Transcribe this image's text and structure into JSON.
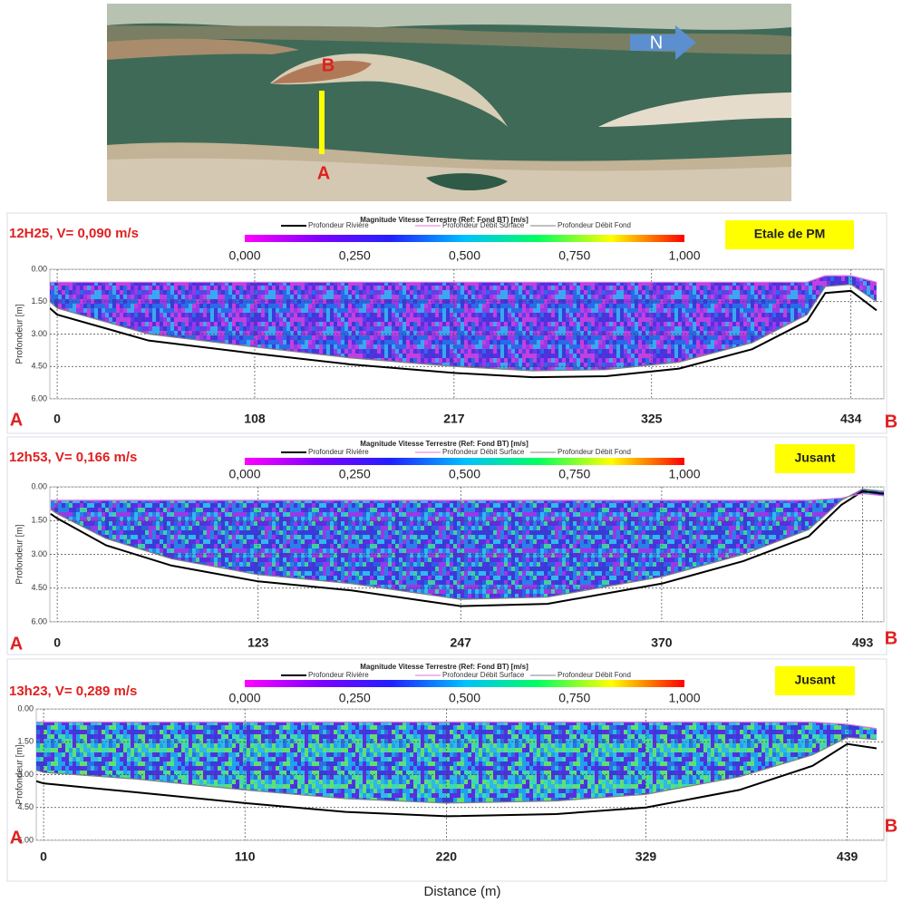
{
  "map": {
    "label_a": "A",
    "label_b": "B",
    "north": "N"
  },
  "x_label": "Distance (m)",
  "chart_data": [
    {
      "type": "line",
      "title": "12H25, V= 0,090 m/s",
      "annotation": "Etale de PM",
      "colorbar_title": "Magnitude Vitesse Terrestre (Ref: Fond BT) [m/s]",
      "colormap": [
        "#ff00ff",
        "#8000ff",
        "#2020ff",
        "#00c0ff",
        "#00ff60",
        "#ffff00",
        "#ff0000"
      ],
      "colorbar_ticks": [
        {
          "value": 0,
          "label": "0,000"
        },
        {
          "value": 0.25,
          "label": "0,250"
        },
        {
          "value": 0.5,
          "label": "0,500"
        },
        {
          "value": 0.75,
          "label": "0,750"
        },
        {
          "value": 1,
          "label": "1,000"
        }
      ],
      "field_colors": [
        "#5a2ee0",
        "#3a3ad8",
        "#2a6ae8",
        "#9a38e8",
        "#3aa8f0",
        "#6040e8",
        "#c040e0"
      ],
      "y_label": "Profondeur [m]",
      "start_label": "A",
      "end_label": "B",
      "xlim": [
        -4,
        452
      ],
      "xticks": [
        0,
        108,
        217,
        325,
        434
      ],
      "ylim": [
        0,
        6
      ],
      "yticks": [
        {
          "value": 0,
          "label": "0.00"
        },
        {
          "value": 1.5,
          "label": "1.50"
        },
        {
          "value": 3,
          "label": "3.00"
        },
        {
          "value": 4.5,
          "label": "4.50"
        },
        {
          "value": 6,
          "label": "6.00"
        }
      ],
      "x": [
        -4,
        0,
        50,
        108,
        160,
        217,
        260,
        300,
        340,
        380,
        410,
        420,
        434,
        448
      ],
      "series": [
        {
          "name": "Profondeur Rivière",
          "color": "#000000",
          "values": [
            1.8,
            2.1,
            3.3,
            3.9,
            4.4,
            4.8,
            5.0,
            4.95,
            4.6,
            3.7,
            2.4,
            1.1,
            1.0,
            1.9
          ]
        },
        {
          "name": "Profondeur Débit Surface",
          "color": "#e070e0",
          "values": [
            0.6,
            0.6,
            0.6,
            0.6,
            0.6,
            0.6,
            0.6,
            0.6,
            0.6,
            0.6,
            0.6,
            0.3,
            0.3,
            0.6
          ]
        },
        {
          "name": "Profondeur Débit Fond",
          "color": "#808080",
          "values": [
            1.5,
            1.8,
            3.0,
            3.6,
            4.1,
            4.5,
            4.7,
            4.65,
            4.3,
            3.4,
            2.1,
            0.8,
            0.7,
            1.5
          ]
        }
      ]
    },
    {
      "type": "line",
      "title": "12h53, V= 0,166 m/s",
      "annotation": "Jusant",
      "colorbar_title": "Magnitude Vitesse Terrestre (Ref: Fond BT) [m/s]",
      "colormap": [
        "#ff00ff",
        "#8000ff",
        "#2020ff",
        "#00c0ff",
        "#00ff60",
        "#ffff00",
        "#ff0000"
      ],
      "colorbar_ticks": [
        {
          "value": 0,
          "label": "0,000"
        },
        {
          "value": 0.25,
          "label": "0,250"
        },
        {
          "value": 0.5,
          "label": "0,500"
        },
        {
          "value": 0.75,
          "label": "0,750"
        },
        {
          "value": 1,
          "label": "1,000"
        }
      ],
      "field_colors": [
        "#3a3ad8",
        "#2a80e8",
        "#30b8f0",
        "#5a2ee0",
        "#40d0a0",
        "#2a60e0",
        "#9a38e8"
      ],
      "y_label": "Profondeur [m]",
      "start_label": "A",
      "end_label": "B",
      "xlim": [
        -4.5,
        506
      ],
      "xticks": [
        0,
        123,
        247,
        370,
        493
      ],
      "ylim": [
        0,
        6
      ],
      "yticks": [
        {
          "value": 0,
          "label": "0.00"
        },
        {
          "value": 1.5,
          "label": "1.50"
        },
        {
          "value": 3,
          "label": "3.00"
        },
        {
          "value": 4.5,
          "label": "4.50"
        },
        {
          "value": 6,
          "label": "6.00"
        }
      ],
      "x": [
        -4,
        0,
        30,
        70,
        123,
        180,
        247,
        300,
        370,
        420,
        460,
        480,
        493,
        506
      ],
      "series": [
        {
          "name": "Profondeur Rivière",
          "color": "#000000",
          "values": [
            1.2,
            1.4,
            2.6,
            3.5,
            4.2,
            4.6,
            5.3,
            5.2,
            4.3,
            3.3,
            2.2,
            0.8,
            0.2,
            0.3
          ]
        },
        {
          "name": "Profondeur Débit Surface",
          "color": "#e070e0",
          "values": [
            0.6,
            0.6,
            0.6,
            0.6,
            0.6,
            0.6,
            0.6,
            0.6,
            0.6,
            0.6,
            0.6,
            0.5,
            0.3,
            0.4
          ]
        },
        {
          "name": "Profondeur Débit Fond",
          "color": "#808080",
          "values": [
            1.0,
            1.2,
            2.3,
            3.2,
            3.9,
            4.3,
            5.0,
            4.9,
            4.0,
            3.0,
            1.9,
            0.6,
            0.1,
            0.2
          ]
        }
      ]
    },
    {
      "type": "line",
      "title": "13h23, V= 0,289 m/s",
      "annotation": "Jusant",
      "colorbar_title": "Magnitude Vitesse Terrestre (Ref: Fond BT) [m/s]",
      "colormap": [
        "#ff00ff",
        "#8000ff",
        "#2020ff",
        "#00c0ff",
        "#00ff60",
        "#ffff00",
        "#ff0000"
      ],
      "colorbar_ticks": [
        {
          "value": 0,
          "label": "0,000"
        },
        {
          "value": 0.25,
          "label": "0,250"
        },
        {
          "value": 0.5,
          "label": "0,500"
        },
        {
          "value": 0.75,
          "label": "0,750"
        },
        {
          "value": 1,
          "label": "1,000"
        }
      ],
      "field_colors": [
        "#30b8e8",
        "#40d8b0",
        "#2a70e0",
        "#3a3ad8",
        "#60e070",
        "#20a0f0",
        "#5a2ee0"
      ],
      "y_label": "Profondeur [m]",
      "start_label": "A",
      "end_label": "B",
      "xlim": [
        -4,
        459
      ],
      "xticks": [
        0,
        110,
        220,
        329,
        439
      ],
      "ylim": [
        0,
        6
      ],
      "yticks": [
        {
          "value": 0,
          "label": "0.00"
        },
        {
          "value": 1.5,
          "label": "1.50"
        },
        {
          "value": 3,
          "label": "3.00"
        },
        {
          "value": 4.5,
          "label": "4.50"
        },
        {
          "value": 6,
          "label": "6.00"
        }
      ],
      "x": [
        -4,
        0,
        50,
        110,
        165,
        220,
        280,
        329,
        380,
        420,
        439,
        455
      ],
      "series": [
        {
          "name": "Profondeur Rivière",
          "color": "#000000",
          "values": [
            3.3,
            3.4,
            3.8,
            4.3,
            4.7,
            4.9,
            4.8,
            4.5,
            3.7,
            2.6,
            1.6,
            1.8
          ]
        },
        {
          "name": "Profondeur Débit Surface",
          "color": "#e070e0",
          "values": [
            0.6,
            0.6,
            0.6,
            0.6,
            0.6,
            0.6,
            0.6,
            0.6,
            0.6,
            0.6,
            0.7,
            0.9
          ]
        },
        {
          "name": "Profondeur Débit Fond",
          "color": "#808080",
          "values": [
            2.8,
            2.9,
            3.2,
            3.7,
            4.1,
            4.3,
            4.2,
            3.9,
            3.1,
            2.1,
            1.3,
            1.4
          ]
        }
      ]
    }
  ]
}
